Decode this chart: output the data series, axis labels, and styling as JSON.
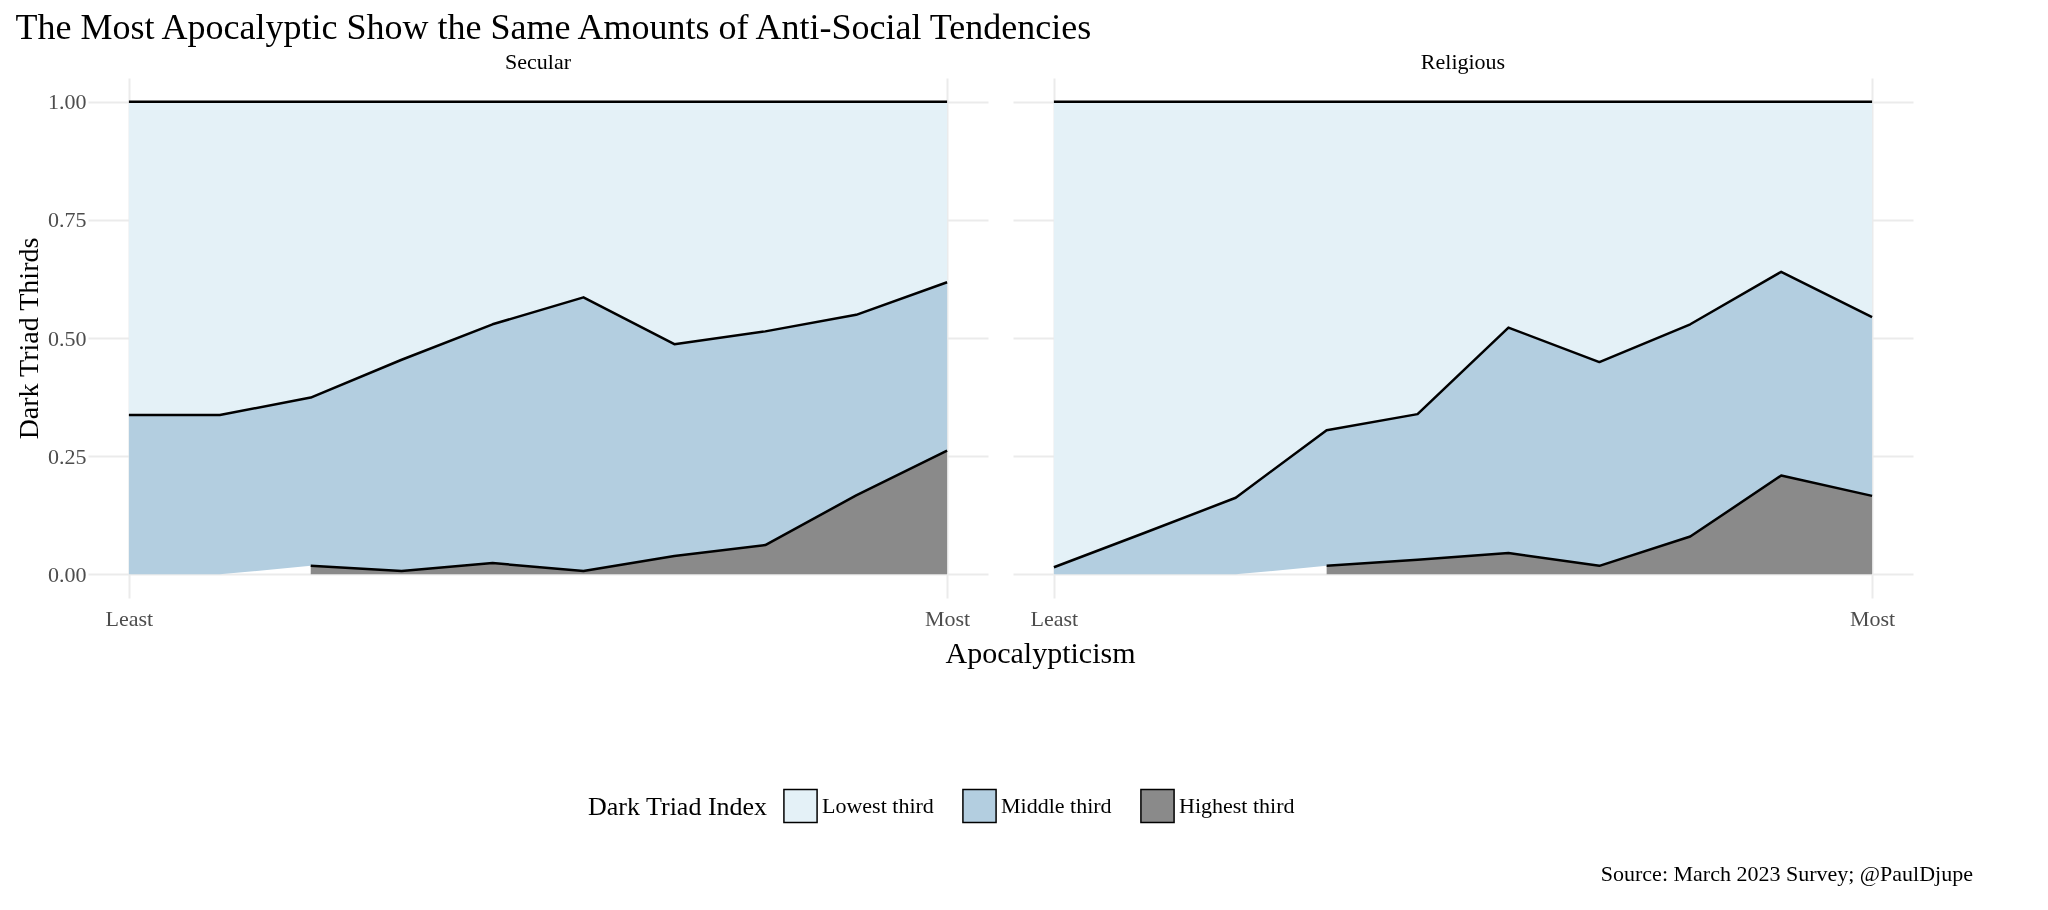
{
  "chart_data": [
    {
      "type": "area",
      "title": "The Most Apocalyptic Show the Same Amounts of Anti-Social Tendencies",
      "subtitle": "Secular",
      "xlabel": "Apocalypticism",
      "ylabel": "Dark Triad Thirds",
      "legend_title": "Dark Triad Index",
      "legend": "bottom",
      "grid": true,
      "stacked": true,
      "annotations": [
        "Source: March 2023 Survey; @PaulDjupe"
      ],
      "categories": [
        "Least",
        null,
        null,
        null,
        null,
        null,
        null,
        null,
        null,
        "Most"
      ],
      "ylim": [
        -0.05,
        1.05
      ],
      "yticks": [
        {
          "value": 0,
          "label": "0.00"
        },
        {
          "value": 0.25,
          "label": "0.25"
        },
        {
          "value": 0.5,
          "label": "0.50"
        },
        {
          "value": 0.75,
          "label": "0.75"
        },
        {
          "value": 1,
          "label": "1.00"
        }
      ],
      "series": [
        {
          "name": "Highest third",
          "color": "#8a8a8a",
          "values": [
            null,
            null,
            0.018,
            0.007,
            0.024,
            0.007,
            0.039,
            0.062,
            0.167,
            0.262
          ]
        },
        {
          "name": "Middle third",
          "color": "#b3cee0",
          "values": [
            0.337,
            0.337,
            0.356,
            0.447,
            0.505,
            0.579,
            0.448,
            0.452,
            0.382,
            0.356
          ]
        },
        {
          "name": "Lowest third",
          "color": "#e4f1f7",
          "values": [
            0.663,
            0.663,
            0.626,
            0.546,
            0.471,
            0.414,
            0.513,
            0.486,
            0.451,
            0.382
          ]
        }
      ]
    },
    {
      "type": "area",
      "subtitle": "Religious",
      "grid": true,
      "stacked": true,
      "tick_labels": "x",
      "categories": [
        "Least",
        null,
        null,
        null,
        null,
        null,
        null,
        null,
        null,
        "Most"
      ],
      "ylim": [
        -0.05,
        1.05
      ],
      "yticks": [
        0,
        0.25,
        0.5,
        0.75,
        1
      ],
      "series": [
        {
          "name": "Highest third",
          "color": "#8a8a8a",
          "values": [
            null,
            null,
            null,
            0.018,
            0.031,
            0.045,
            0.018,
            0.08,
            0.209,
            0.166
          ]
        },
        {
          "name": "Middle third",
          "color": "#b3cee0",
          "values": [
            0.015,
            0.088,
            0.162,
            0.287,
            0.308,
            0.477,
            0.431,
            0.449,
            0.431,
            0.378
          ]
        },
        {
          "name": "Lowest third",
          "color": "#e4f1f7",
          "values": [
            0.985,
            0.912,
            0.838,
            0.695,
            0.661,
            0.478,
            0.551,
            0.471,
            0.36,
            0.456
          ]
        }
      ]
    }
  ]
}
